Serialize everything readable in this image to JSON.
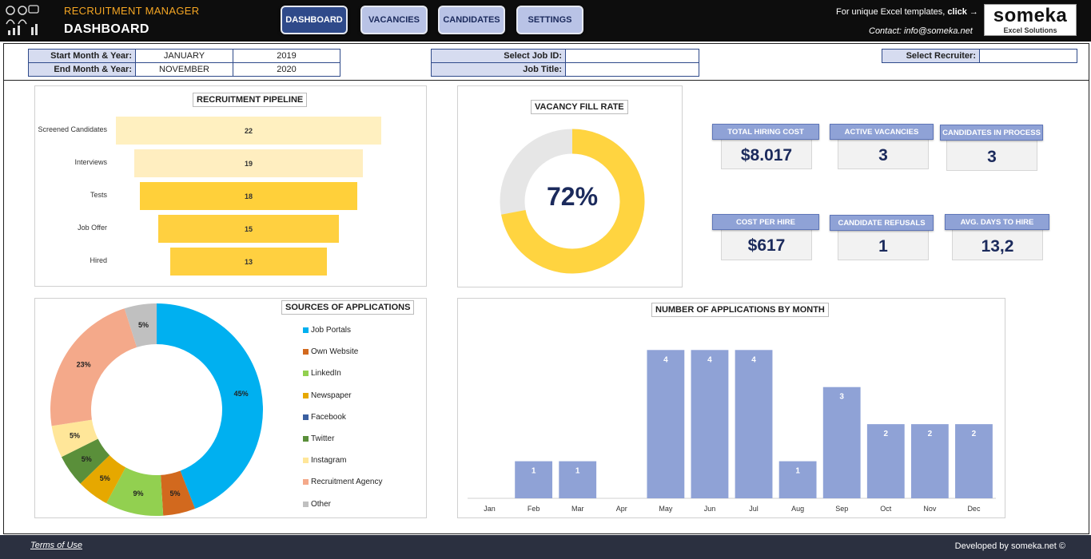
{
  "header": {
    "app_title": "RECRUITMENT MANAGER",
    "page_title": "DASHBOARD",
    "promo_text": "For unique Excel templates, ",
    "promo_link": "click →",
    "contact": "Contact: info@someka.net",
    "brand_name": "someka",
    "brand_sub": "Excel Solutions",
    "nav": [
      "DASHBOARD",
      "VACANCIES",
      "CANDIDATES",
      "SETTINGS"
    ]
  },
  "filters": {
    "start_label": "Start Month & Year:",
    "start_month": "JANUARY",
    "start_year": "2019",
    "end_label": "End Month & Year:",
    "end_month": "NOVEMBER",
    "end_year": "2020",
    "job_id_label": "Select Job ID:",
    "job_id_value": "",
    "job_title_label": "Job Title:",
    "job_title_value": "",
    "recruiter_label": "Select Recruiter:",
    "recruiter_value": ""
  },
  "pipeline": {
    "title": "RECRUITMENT PIPELINE",
    "stages": [
      {
        "label": "Screened Candidates",
        "value": "22",
        "color": "#fff0c0"
      },
      {
        "label": "Interviews",
        "value": "19",
        "color": "#ffeec0"
      },
      {
        "label": "Tests",
        "value": "18",
        "color": "#ffd03a"
      },
      {
        "label": "Job Offer",
        "value": "15",
        "color": "#ffd040"
      },
      {
        "label": "Hired",
        "value": "13",
        "color": "#ffd040"
      }
    ]
  },
  "fill_rate": {
    "title": "VACANCY FILL RATE",
    "value_text": "72%",
    "value": 0.72,
    "color": "#ffd440",
    "rest_color": "#e6e6e6"
  },
  "kpis": {
    "total_hiring_cost": {
      "label": "TOTAL HIRING COST",
      "value": "$8.017"
    },
    "active_vacancies": {
      "label": "ACTIVE VACANCIES",
      "value": "3"
    },
    "candidates_in_process": {
      "label": "CANDIDATES IN PROCESS",
      "value": "3"
    },
    "cost_per_hire": {
      "label": "COST PER HIRE",
      "value": "$617"
    },
    "candidate_refusals": {
      "label": "CANDIDATE REFUSALS",
      "value": "1"
    },
    "avg_days_to_hire": {
      "label": "AVG. DAYS TO HIRE",
      "value": "13,2"
    }
  },
  "sources": {
    "title": "SOURCES OF APPLICATIONS",
    "legend": [
      {
        "name": "Job Portals",
        "color": "#00b0f0"
      },
      {
        "name": "Own Website",
        "color": "#d2691e"
      },
      {
        "name": "LinkedIn",
        "color": "#92d050"
      },
      {
        "name": "Newspaper",
        "color": "#e6a800"
      },
      {
        "name": "Facebook",
        "color": "#3a5fa0"
      },
      {
        "name": "Twitter",
        "color": "#5a8f3a"
      },
      {
        "name": "Instagram",
        "color": "#ffe699"
      },
      {
        "name": "Recruitment Agency",
        "color": "#f4a98a"
      },
      {
        "name": "Other",
        "color": "#c0c0c0"
      }
    ]
  },
  "monthly": {
    "title": "NUMBER OF APPLICATIONS BY MONTH",
    "bar_color": "#8fa2d6"
  },
  "chart_data": [
    {
      "type": "pie",
      "title": "SOURCES OF APPLICATIONS",
      "categories": [
        "Job Portals",
        "Own Website",
        "LinkedIn",
        "Newspaper",
        "Facebook",
        "Twitter",
        "Instagram",
        "Recruitment Agency",
        "Other"
      ],
      "values": [
        45,
        5,
        9,
        5,
        0,
        5,
        5,
        23,
        5
      ],
      "labels": [
        "45%",
        "5%",
        "9%",
        "5%",
        "",
        "5%",
        "5%",
        "23%",
        "5%"
      ]
    },
    {
      "type": "bar",
      "title": "NUMBER OF APPLICATIONS BY MONTH",
      "categories": [
        "Jan",
        "Feb",
        "Mar",
        "Apr",
        "May",
        "Jun",
        "Jul",
        "Aug",
        "Sep",
        "Oct",
        "Nov",
        "Dec"
      ],
      "values": [
        0,
        1,
        1,
        0,
        4,
        4,
        4,
        1,
        3,
        2,
        2,
        2
      ],
      "ylim": [
        0,
        4.2
      ]
    }
  ],
  "footer": {
    "terms": "Terms of Use",
    "developed": "Developed by someka.net ©"
  }
}
